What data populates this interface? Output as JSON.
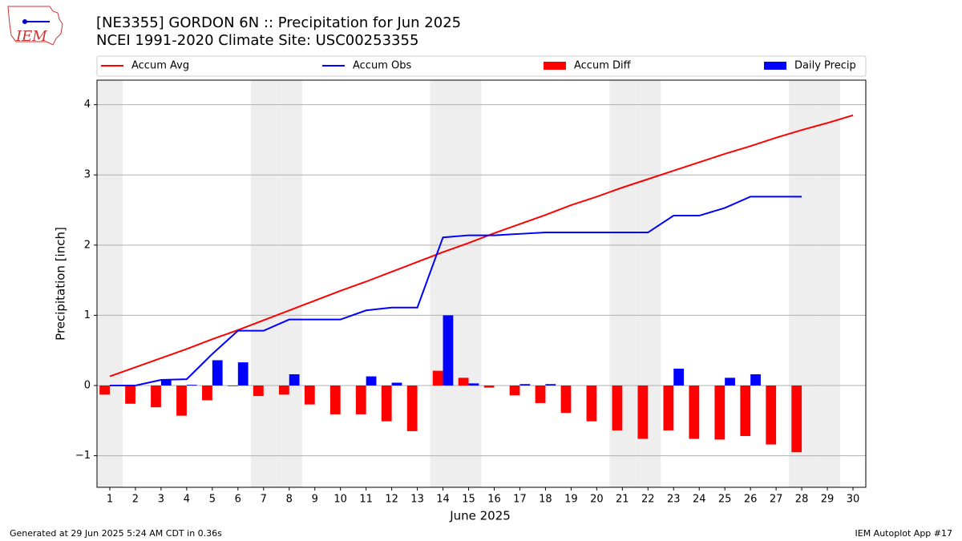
{
  "chart_data": {
    "type": "combo",
    "logo_text": "IEM",
    "title": "[NE3355] GORDON 6N :: Precipitation for Jun 2025",
    "subtitle": "NCEI 1991-2020 Climate Site: USC00253355",
    "xlabel": "June 2025",
    "ylabel": "Precipitation [inch]",
    "footer_left": "Generated at 29 Jun 2025 5:24 AM CDT in 0.36s",
    "footer_right": "IEM Autoplot App #17",
    "x": [
      1,
      2,
      3,
      4,
      5,
      6,
      7,
      8,
      9,
      10,
      11,
      12,
      13,
      14,
      15,
      16,
      17,
      18,
      19,
      20,
      21,
      22,
      23,
      24,
      25,
      26,
      27,
      28,
      29,
      30
    ],
    "xlim": [
      0.5,
      30.5
    ],
    "xticks": [
      1,
      2,
      3,
      4,
      5,
      6,
      7,
      8,
      9,
      10,
      11,
      12,
      13,
      14,
      15,
      16,
      17,
      18,
      19,
      20,
      21,
      22,
      23,
      24,
      25,
      26,
      27,
      28,
      29,
      30
    ],
    "ylim": [
      -1.45,
      4.35
    ],
    "yticks": [
      {
        "value": -1,
        "label": "−1"
      },
      0,
      1,
      2,
      3,
      4
    ],
    "grid": true,
    "shaded_days": [
      1,
      7,
      8,
      14,
      15,
      21,
      22,
      28,
      29
    ],
    "shade_color": "#eeeeee",
    "series": [
      {
        "name": "Accum Avg",
        "type": "line",
        "color": "#ff0000",
        "values": [
          0.13,
          0.26,
          0.39,
          0.52,
          0.66,
          0.79,
          0.93,
          1.07,
          1.21,
          1.35,
          1.48,
          1.62,
          1.76,
          1.9,
          2.03,
          2.17,
          2.3,
          2.43,
          2.57,
          2.69,
          2.82,
          2.94,
          3.06,
          3.18,
          3.3,
          3.41,
          3.53,
          3.64,
          3.74,
          3.85
        ]
      },
      {
        "name": "Accum Obs",
        "type": "line",
        "color": "#0000ff",
        "values": [
          0.0,
          0.0,
          0.08,
          0.09,
          0.45,
          0.78,
          0.78,
          0.94,
          0.94,
          0.94,
          1.07,
          1.11,
          1.11,
          2.11,
          2.14,
          2.14,
          2.16,
          2.18,
          2.18,
          2.18,
          2.18,
          2.18,
          2.42,
          2.42,
          2.53,
          2.69,
          2.69,
          2.69,
          null,
          null
        ]
      },
      {
        "name": "Accum Diff",
        "type": "bar",
        "color": "#ff0000",
        "values": [
          -0.13,
          -0.26,
          -0.31,
          -0.43,
          -0.21,
          -0.01,
          -0.15,
          -0.13,
          -0.27,
          -0.41,
          -0.41,
          -0.51,
          -0.65,
          0.21,
          0.11,
          -0.03,
          -0.14,
          -0.25,
          -0.39,
          -0.51,
          -0.64,
          -0.76,
          -0.64,
          -0.76,
          -0.77,
          -0.72,
          -0.84,
          -0.95,
          null,
          null
        ]
      },
      {
        "name": "Daily Precip",
        "type": "bar",
        "color": "#0000ff",
        "values": [
          0,
          0,
          0.08,
          0.01,
          0.36,
          0.33,
          0,
          0.16,
          0,
          0,
          0.13,
          0.04,
          0,
          1.0,
          0.03,
          0,
          0.02,
          0.02,
          0,
          0,
          0,
          0,
          0.24,
          0,
          0.11,
          0.16,
          0,
          0,
          null,
          null
        ]
      }
    ]
  }
}
